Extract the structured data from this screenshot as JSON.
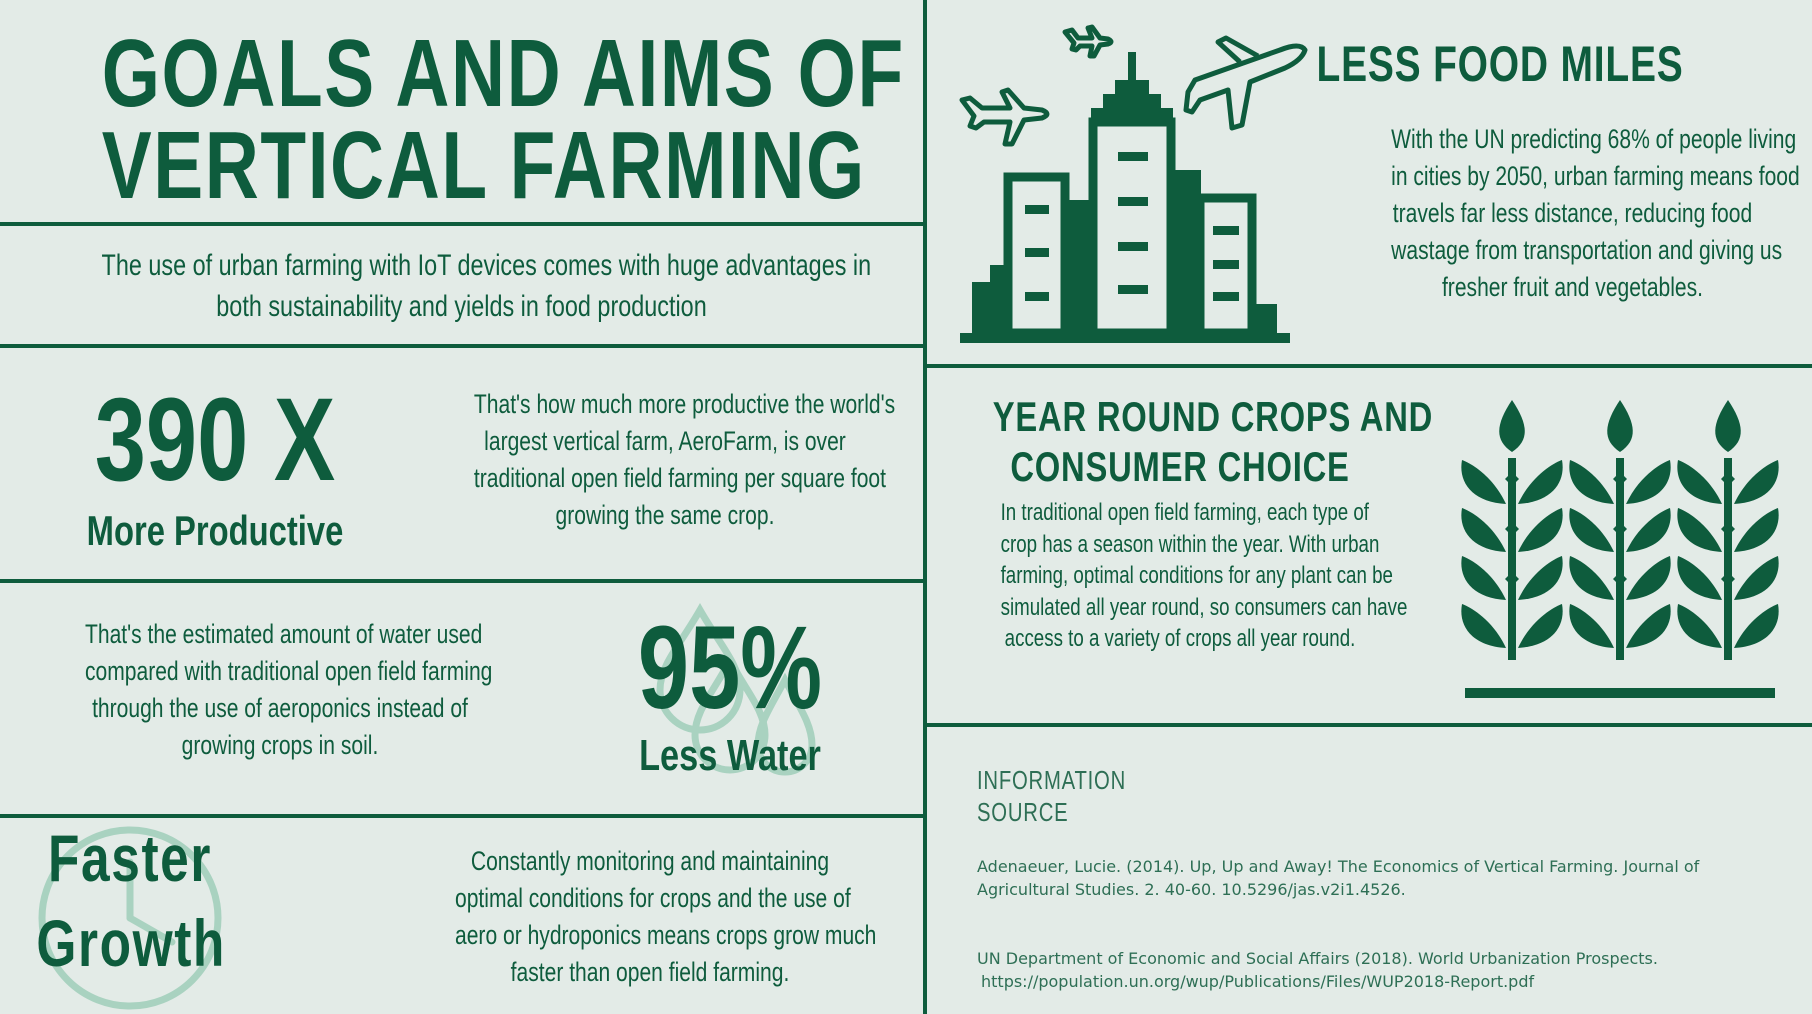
{
  "title": {
    "line1": "GOALS AND AIMS OF",
    "line2": "VERTICAL FARMING"
  },
  "intro": {
    "line1": "The use of urban farming with IoT devices comes with huge advantages in",
    "line2": "both sustainability and yields in food production"
  },
  "productive": {
    "number": "390 X",
    "label": "More Productive",
    "text": [
      "That's how much more productive the world's",
      "largest vertical farm, AeroFarm, is over",
      "traditional open field farming per square foot",
      "growing the same crop."
    ]
  },
  "water": {
    "number": "95%",
    "label": "Less Water",
    "text": [
      "That's the estimated amount of water used",
      "compared with traditional open field farming",
      "through the use of aeroponics instead of",
      "growing crops in soil."
    ]
  },
  "growth": {
    "line1": "Faster",
    "line2": "Growth",
    "text": [
      "Constantly monitoring and maintaining",
      "optimal conditions for crops and the use of",
      "aero or hydroponics means crops grow much",
      "faster than open field farming."
    ]
  },
  "food_miles": {
    "heading": "LESS FOOD MILES",
    "text": [
      "With the UN predicting 68% of people living",
      "in cities by 2050, urban farming means food",
      "travels far less distance, reducing food",
      "wastage from transportation and giving us",
      "fresher fruit and vegetables."
    ]
  },
  "year_round": {
    "heading1": "YEAR ROUND CROPS AND",
    "heading2": "CONSUMER CHOICE",
    "text": [
      "In traditional open field farming, each type of",
      "crop has a season within the year. With urban",
      "farming, optimal conditions for any plant can be",
      "simulated all year round, so consumers can have",
      "access to a variety of crops all year round."
    ]
  },
  "source": {
    "heading1": "INFORMATION",
    "heading2": "SOURCE",
    "ref1_line1": "Adenaeuer, Lucie. (2014). Up, Up and Away! The Economics of Vertical Farming. Journal of",
    "ref1_line2": "Agricultural Studies. 2. 40-60. 10.5296/jas.v2i1.4526.",
    "ref2_line1": "UN Department of Economic and Social Affairs (2018). World Urbanization Prospects.",
    "ref2_line2": "https://population.un.org/wup/Publications/Files/WUP2018-Report.pdf"
  },
  "icons": {
    "city": "city-buildings-airplanes-icon",
    "crops": "wheat-crops-icon",
    "water": "water-drops-icon",
    "clock": "clock-icon"
  },
  "colors": {
    "background": "#e3ebe7",
    "primary": "#0e5c3d",
    "faded": "#a9d2c0"
  }
}
